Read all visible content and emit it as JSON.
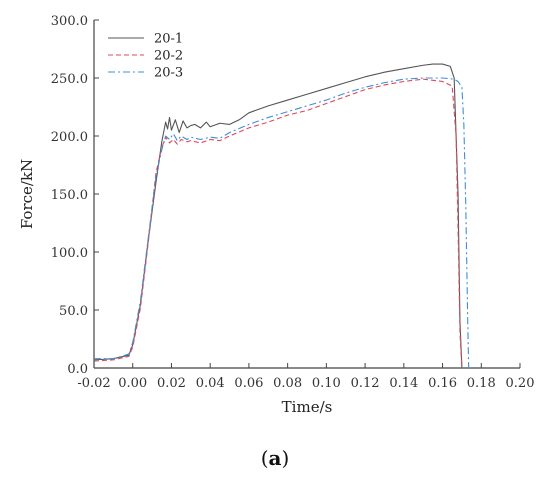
{
  "chart_data": {
    "type": "line",
    "xlabel": "Time/s",
    "ylabel": "Force/kN",
    "xlim": [
      -0.02,
      0.2
    ],
    "ylim": [
      0,
      300
    ],
    "xticks": [
      "-0.02",
      "0.00",
      "0.02",
      "0.04",
      "0.06",
      "0.08",
      "0.10",
      "0.12",
      "0.14",
      "0.16",
      "0.18",
      "0.20"
    ],
    "yticks": [
      "0.0",
      "50.0",
      "100.0",
      "150.0",
      "200.0",
      "250.0",
      "300.0"
    ],
    "grid": false,
    "legend_position": "top-left",
    "series": [
      {
        "name": "20-1",
        "color": "#555555",
        "dash": "solid",
        "x": [
          -0.02,
          -0.01,
          -0.002,
          0.0,
          0.004,
          0.008,
          0.012,
          0.015,
          0.017,
          0.018,
          0.019,
          0.02,
          0.022,
          0.024,
          0.026,
          0.028,
          0.03,
          0.032,
          0.035,
          0.038,
          0.04,
          0.045,
          0.05,
          0.055,
          0.06,
          0.07,
          0.08,
          0.09,
          0.1,
          0.11,
          0.12,
          0.13,
          0.14,
          0.15,
          0.155,
          0.16,
          0.164,
          0.166,
          0.168,
          0.169,
          0.17
        ],
        "y": [
          7,
          8,
          11,
          20,
          55,
          110,
          160,
          195,
          212,
          206,
          216,
          205,
          214,
          203,
          213,
          207,
          209,
          210,
          207,
          212,
          208,
          211,
          210,
          214,
          220,
          226,
          231,
          236,
          241,
          246,
          251,
          255,
          258,
          261,
          262,
          262,
          260,
          250,
          150,
          40,
          0
        ]
      },
      {
        "name": "20-2",
        "color": "#e04858",
        "dash": "dashed",
        "x": [
          -0.02,
          -0.01,
          -0.002,
          0.0,
          0.004,
          0.008,
          0.012,
          0.015,
          0.017,
          0.019,
          0.021,
          0.023,
          0.025,
          0.028,
          0.03,
          0.035,
          0.04,
          0.045,
          0.05,
          0.06,
          0.07,
          0.08,
          0.09,
          0.1,
          0.11,
          0.12,
          0.13,
          0.14,
          0.15,
          0.16,
          0.165,
          0.167,
          0.168,
          0.169,
          0.17
        ],
        "y": [
          6,
          7,
          10,
          18,
          52,
          108,
          168,
          190,
          199,
          194,
          197,
          193,
          197,
          195,
          196,
          194,
          197,
          196,
          200,
          207,
          212,
          218,
          222,
          228,
          234,
          240,
          244,
          247,
          249,
          247,
          243,
          200,
          120,
          30,
          0
        ]
      },
      {
        "name": "20-3",
        "color": "#3e8fd8",
        "dash": "dashdot",
        "x": [
          -0.02,
          -0.01,
          -0.002,
          0.0,
          0.004,
          0.008,
          0.012,
          0.015,
          0.017,
          0.019,
          0.021,
          0.023,
          0.025,
          0.028,
          0.03,
          0.035,
          0.04,
          0.045,
          0.05,
          0.06,
          0.07,
          0.08,
          0.09,
          0.1,
          0.11,
          0.12,
          0.13,
          0.14,
          0.15,
          0.16,
          0.166,
          0.168,
          0.17,
          0.171,
          0.172,
          0.173,
          0.1735
        ],
        "y": [
          8,
          8,
          12,
          22,
          58,
          112,
          165,
          188,
          200,
          197,
          202,
          196,
          200,
          197,
          199,
          197,
          199,
          198,
          203,
          210,
          216,
          221,
          226,
          231,
          237,
          242,
          246,
          249,
          250,
          250,
          249,
          247,
          242,
          210,
          140,
          40,
          0
        ]
      }
    ]
  },
  "caption": {
    "open": "(",
    "letter": "a",
    "close": ")"
  }
}
